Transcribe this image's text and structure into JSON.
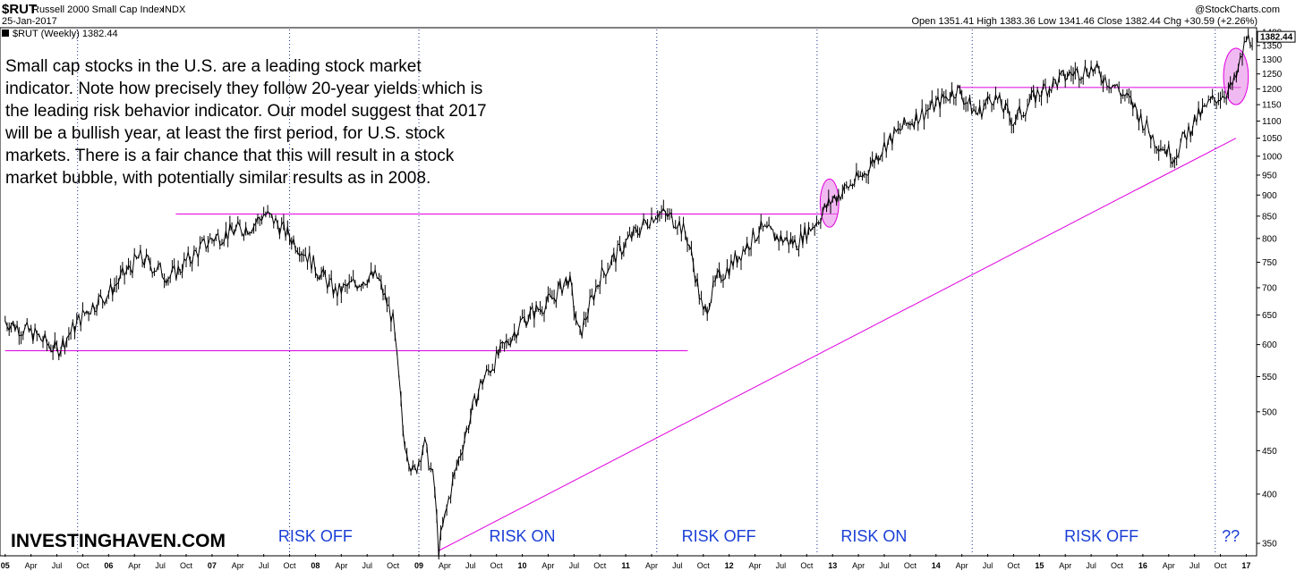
{
  "header": {
    "symbol": "$RUT",
    "index_name": "Russell 2000 Small Cap Index",
    "exchange": "INDX",
    "date": "25-Jan-2017",
    "watermark": "@StockCharts.com",
    "ohlc_text": "Open 1351.41  High 1383.36  Low 1341.46  Close 1382.44  Chg +30.59 (+2.26%)",
    "legend_label": "$RUT (Weekly) 1382.44",
    "legend_swatch_color": "#000000"
  },
  "commentary": [
    "Small cap stocks in the U.S. are a leading stock market",
    "indicator. Note how precisely they follow 20-year yields which is",
    "the leading risk behavior indicator. Our model suggest that 2017",
    "will be a bullish year, at least the first period, for U.S. stock",
    "markets. There is a fair chance that this will result in a stock",
    "market bubble, with potentially similar results as in 2008."
  ],
  "brand": "INVESTINGHAVEN.COM",
  "colors": {
    "price": "#000000",
    "annotation": "#e000e0",
    "regime_label": "#1a3fd6",
    "highlight": "#e680e6"
  },
  "chart_data": {
    "type": "line",
    "title": "$RUT Russell 2000 Small Cap Index INDX",
    "series": [
      {
        "name": "$RUT (Weekly)",
        "x": [
          2005.0,
          2005.3,
          2005.5,
          2005.8,
          2006.0,
          2006.3,
          2006.6,
          2006.9,
          2007.0,
          2007.4,
          2007.5,
          2007.6,
          2007.9,
          2008.0,
          2008.2,
          2008.5,
          2008.6,
          2008.75,
          2008.85,
          2008.95,
          2009.05,
          2009.15,
          2009.19,
          2009.3,
          2009.45,
          2009.6,
          2009.8,
          2010.0,
          2010.3,
          2010.45,
          2010.55,
          2010.75,
          2011.0,
          2011.3,
          2011.5,
          2011.6,
          2011.75,
          2011.9,
          2012.0,
          2012.3,
          2012.5,
          2012.65,
          2012.85,
          2013.0,
          2013.3,
          2013.5,
          2013.75,
          2014.0,
          2014.2,
          2014.4,
          2014.55,
          2014.75,
          2015.0,
          2015.3,
          2015.5,
          2015.7,
          2015.9,
          2016.0,
          2016.1,
          2016.3,
          2016.5,
          2016.7,
          2016.85,
          2016.9,
          2017.0,
          2017.07
        ],
        "values": [
          640,
          615,
          590,
          660,
          690,
          760,
          720,
          780,
          800,
          830,
          855,
          840,
          770,
          740,
          690,
          720,
          720,
          640,
          470,
          420,
          460,
          410,
          343,
          400,
          470,
          540,
          590,
          640,
          680,
          720,
          610,
          720,
          790,
          860,
          840,
          800,
          650,
          720,
          740,
          820,
          800,
          790,
          840,
          890,
          950,
          1030,
          1100,
          1150,
          1200,
          1120,
          1180,
          1100,
          1190,
          1250,
          1270,
          1220,
          1150,
          1100,
          1050,
          1000,
          1100,
          1170,
          1200,
          1230,
          1370,
          1382
        ]
      }
    ],
    "ylabel": "",
    "xlabel": "",
    "y_scale": "log",
    "ylim": [
      340,
      1410
    ],
    "y_ticks": [
      350,
      400,
      450,
      500,
      550,
      600,
      650,
      700,
      750,
      800,
      850,
      900,
      950,
      1000,
      1050,
      1100,
      1150,
      1200,
      1250,
      1300,
      1350,
      1400
    ],
    "x_range": [
      2004.95,
      2017.1
    ],
    "x_ticks": [
      {
        "pos": 2005.0,
        "label": "05",
        "year": true
      },
      {
        "pos": 2005.25,
        "label": "Apr"
      },
      {
        "pos": 2005.5,
        "label": "Jul"
      },
      {
        "pos": 2005.75,
        "label": "Oct"
      },
      {
        "pos": 2006.0,
        "label": "06",
        "year": true
      },
      {
        "pos": 2006.25,
        "label": "Apr"
      },
      {
        "pos": 2006.5,
        "label": "Jul"
      },
      {
        "pos": 2006.75,
        "label": "Oct"
      },
      {
        "pos": 2007.0,
        "label": "07",
        "year": true
      },
      {
        "pos": 2007.25,
        "label": "Apr"
      },
      {
        "pos": 2007.5,
        "label": "Jul"
      },
      {
        "pos": 2007.75,
        "label": "Oct"
      },
      {
        "pos": 2008.0,
        "label": "08",
        "year": true
      },
      {
        "pos": 2008.25,
        "label": "Apr"
      },
      {
        "pos": 2008.5,
        "label": "Jul"
      },
      {
        "pos": 2008.75,
        "label": "Oct"
      },
      {
        "pos": 2009.0,
        "label": "09",
        "year": true
      },
      {
        "pos": 2009.25,
        "label": "Apr"
      },
      {
        "pos": 2009.5,
        "label": "Jul"
      },
      {
        "pos": 2009.75,
        "label": "Oct"
      },
      {
        "pos": 2010.0,
        "label": "10",
        "year": true
      },
      {
        "pos": 2010.25,
        "label": "Apr"
      },
      {
        "pos": 2010.5,
        "label": "Jul"
      },
      {
        "pos": 2010.75,
        "label": "Oct"
      },
      {
        "pos": 2011.0,
        "label": "11",
        "year": true
      },
      {
        "pos": 2011.25,
        "label": "Apr"
      },
      {
        "pos": 2011.5,
        "label": "Jul"
      },
      {
        "pos": 2011.75,
        "label": "Oct"
      },
      {
        "pos": 2012.0,
        "label": "12",
        "year": true
      },
      {
        "pos": 2012.25,
        "label": "Apr"
      },
      {
        "pos": 2012.5,
        "label": "Jul"
      },
      {
        "pos": 2012.75,
        "label": "Oct"
      },
      {
        "pos": 2013.0,
        "label": "13",
        "year": true
      },
      {
        "pos": 2013.25,
        "label": "Apr"
      },
      {
        "pos": 2013.5,
        "label": "Jul"
      },
      {
        "pos": 2013.75,
        "label": "Oct"
      },
      {
        "pos": 2014.0,
        "label": "14",
        "year": true
      },
      {
        "pos": 2014.25,
        "label": "Apr"
      },
      {
        "pos": 2014.5,
        "label": "Jul"
      },
      {
        "pos": 2014.75,
        "label": "Oct"
      },
      {
        "pos": 2015.0,
        "label": "15",
        "year": true
      },
      {
        "pos": 2015.25,
        "label": "Apr"
      },
      {
        "pos": 2015.5,
        "label": "Jul"
      },
      {
        "pos": 2015.75,
        "label": "Oct"
      },
      {
        "pos": 2016.0,
        "label": "16",
        "year": true
      },
      {
        "pos": 2016.25,
        "label": "Apr"
      },
      {
        "pos": 2016.5,
        "label": "Jul"
      },
      {
        "pos": 2016.75,
        "label": "Oct"
      },
      {
        "pos": 2017.0,
        "label": "17",
        "year": true
      }
    ],
    "last_price": 1382.44,
    "last_price_label": "1382.44",
    "regime_dividers": [
      2005.7,
      2007.75,
      2009.0,
      2011.3,
      2012.85,
      2014.35,
      2016.7
    ],
    "regime_labels": [
      {
        "text": "RISK OFF",
        "x": 2008.0
      },
      {
        "text": "RISK ON",
        "x": 2010.0
      },
      {
        "text": "RISK OFF",
        "x": 2011.9
      },
      {
        "text": "RISK ON",
        "x": 2013.4
      },
      {
        "text": "RISK OFF",
        "x": 2015.6
      },
      {
        "text": "??",
        "x": 2016.85
      }
    ],
    "trendlines": [
      {
        "x1": 2005.0,
        "y1": 590,
        "x2": 2011.6,
        "y2": 590
      },
      {
        "x1": 2006.65,
        "y1": 855,
        "x2": 2013.05,
        "y2": 855
      },
      {
        "x1": 2014.2,
        "y1": 1205,
        "x2": 2016.95,
        "y2": 1205
      },
      {
        "x1": 2009.19,
        "y1": 343,
        "x2": 2016.9,
        "y2": 1050
      }
    ],
    "highlight_ellipses": [
      {
        "x": 2012.97,
        "y": 880,
        "rx_years": 0.09,
        "y_top": 940,
        "y_bottom": 825
      },
      {
        "x": 2016.9,
        "y": 1240,
        "rx_years": 0.12,
        "y_top": 1340,
        "y_bottom": 1150
      }
    ],
    "grid": false,
    "legend": "top-left"
  }
}
